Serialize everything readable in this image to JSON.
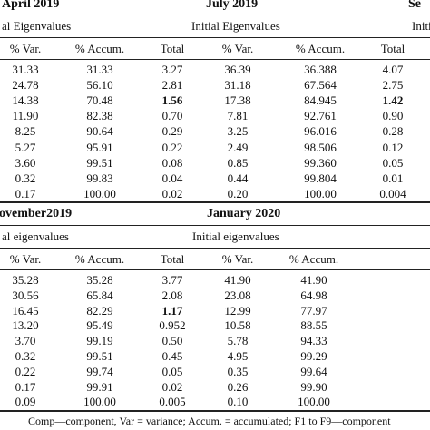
{
  "table1": {
    "titles": [
      "April 2019",
      "July 2019",
      "Se"
    ],
    "sub_headers": [
      "al Eigenvalues",
      "Initial Eigenvalues",
      "Initi"
    ],
    "col_headers": [
      "% Var.",
      "% Accum.",
      "Total",
      "% Var.",
      "% Accum.",
      "Total"
    ],
    "rows": [
      [
        "31.33",
        "31.33",
        "3.27",
        "36.39",
        "36.388",
        "4.07"
      ],
      [
        "24.78",
        "56.10",
        "2.81",
        "31.18",
        "67.564",
        "2.75"
      ],
      [
        "14.38",
        "70.48",
        "1.56",
        "17.38",
        "84.945",
        "1.42"
      ],
      [
        "11.90",
        "82.38",
        "0.70",
        "7.81",
        "92.761",
        "0.90"
      ],
      [
        "8.25",
        "90.64",
        "0.29",
        "3.25",
        "96.016",
        "0.28"
      ],
      [
        "5.27",
        "95.91",
        "0.22",
        "2.49",
        "98.506",
        "0.12"
      ],
      [
        "3.60",
        "99.51",
        "0.08",
        "0.85",
        "99.360",
        "0.05"
      ],
      [
        "0.32",
        "99.83",
        "0.04",
        "0.44",
        "99.804",
        "0.01"
      ],
      [
        "0.17",
        "100.00",
        "0.02",
        "0.20",
        "100.00",
        "0.004"
      ]
    ]
  },
  "table2": {
    "titles": [
      "ovember2019",
      "January 2020"
    ],
    "sub_headers": [
      "al eigenvalues",
      "Initial eigenvalues"
    ],
    "col_headers": [
      "% Var.",
      "% Accum.",
      "Total",
      "% Var.",
      "% Accum."
    ],
    "rows": [
      [
        "35.28",
        "35.28",
        "3.77",
        "41.90",
        "41.90"
      ],
      [
        "30.56",
        "65.84",
        "2.08",
        "23.08",
        "64.98"
      ],
      [
        "16.45",
        "82.29",
        "1.17",
        "12.99",
        "77.97"
      ],
      [
        "13.20",
        "95.49",
        "0.952",
        "10.58",
        "88.55"
      ],
      [
        "3.70",
        "99.19",
        "0.50",
        "5.78",
        "94.33"
      ],
      [
        "0.32",
        "99.51",
        "0.45",
        "4.95",
        "99.29"
      ],
      [
        "0.22",
        "99.74",
        "0.05",
        "0.35",
        "99.64"
      ],
      [
        "0.17",
        "99.91",
        "0.02",
        "0.26",
        "99.90"
      ],
      [
        "0.09",
        "100.00",
        "0.005",
        "0.10",
        "100.00"
      ]
    ]
  },
  "footnote": "Comp—component, Var = variance; Accum. = accumulated; F1 to F9—component"
}
